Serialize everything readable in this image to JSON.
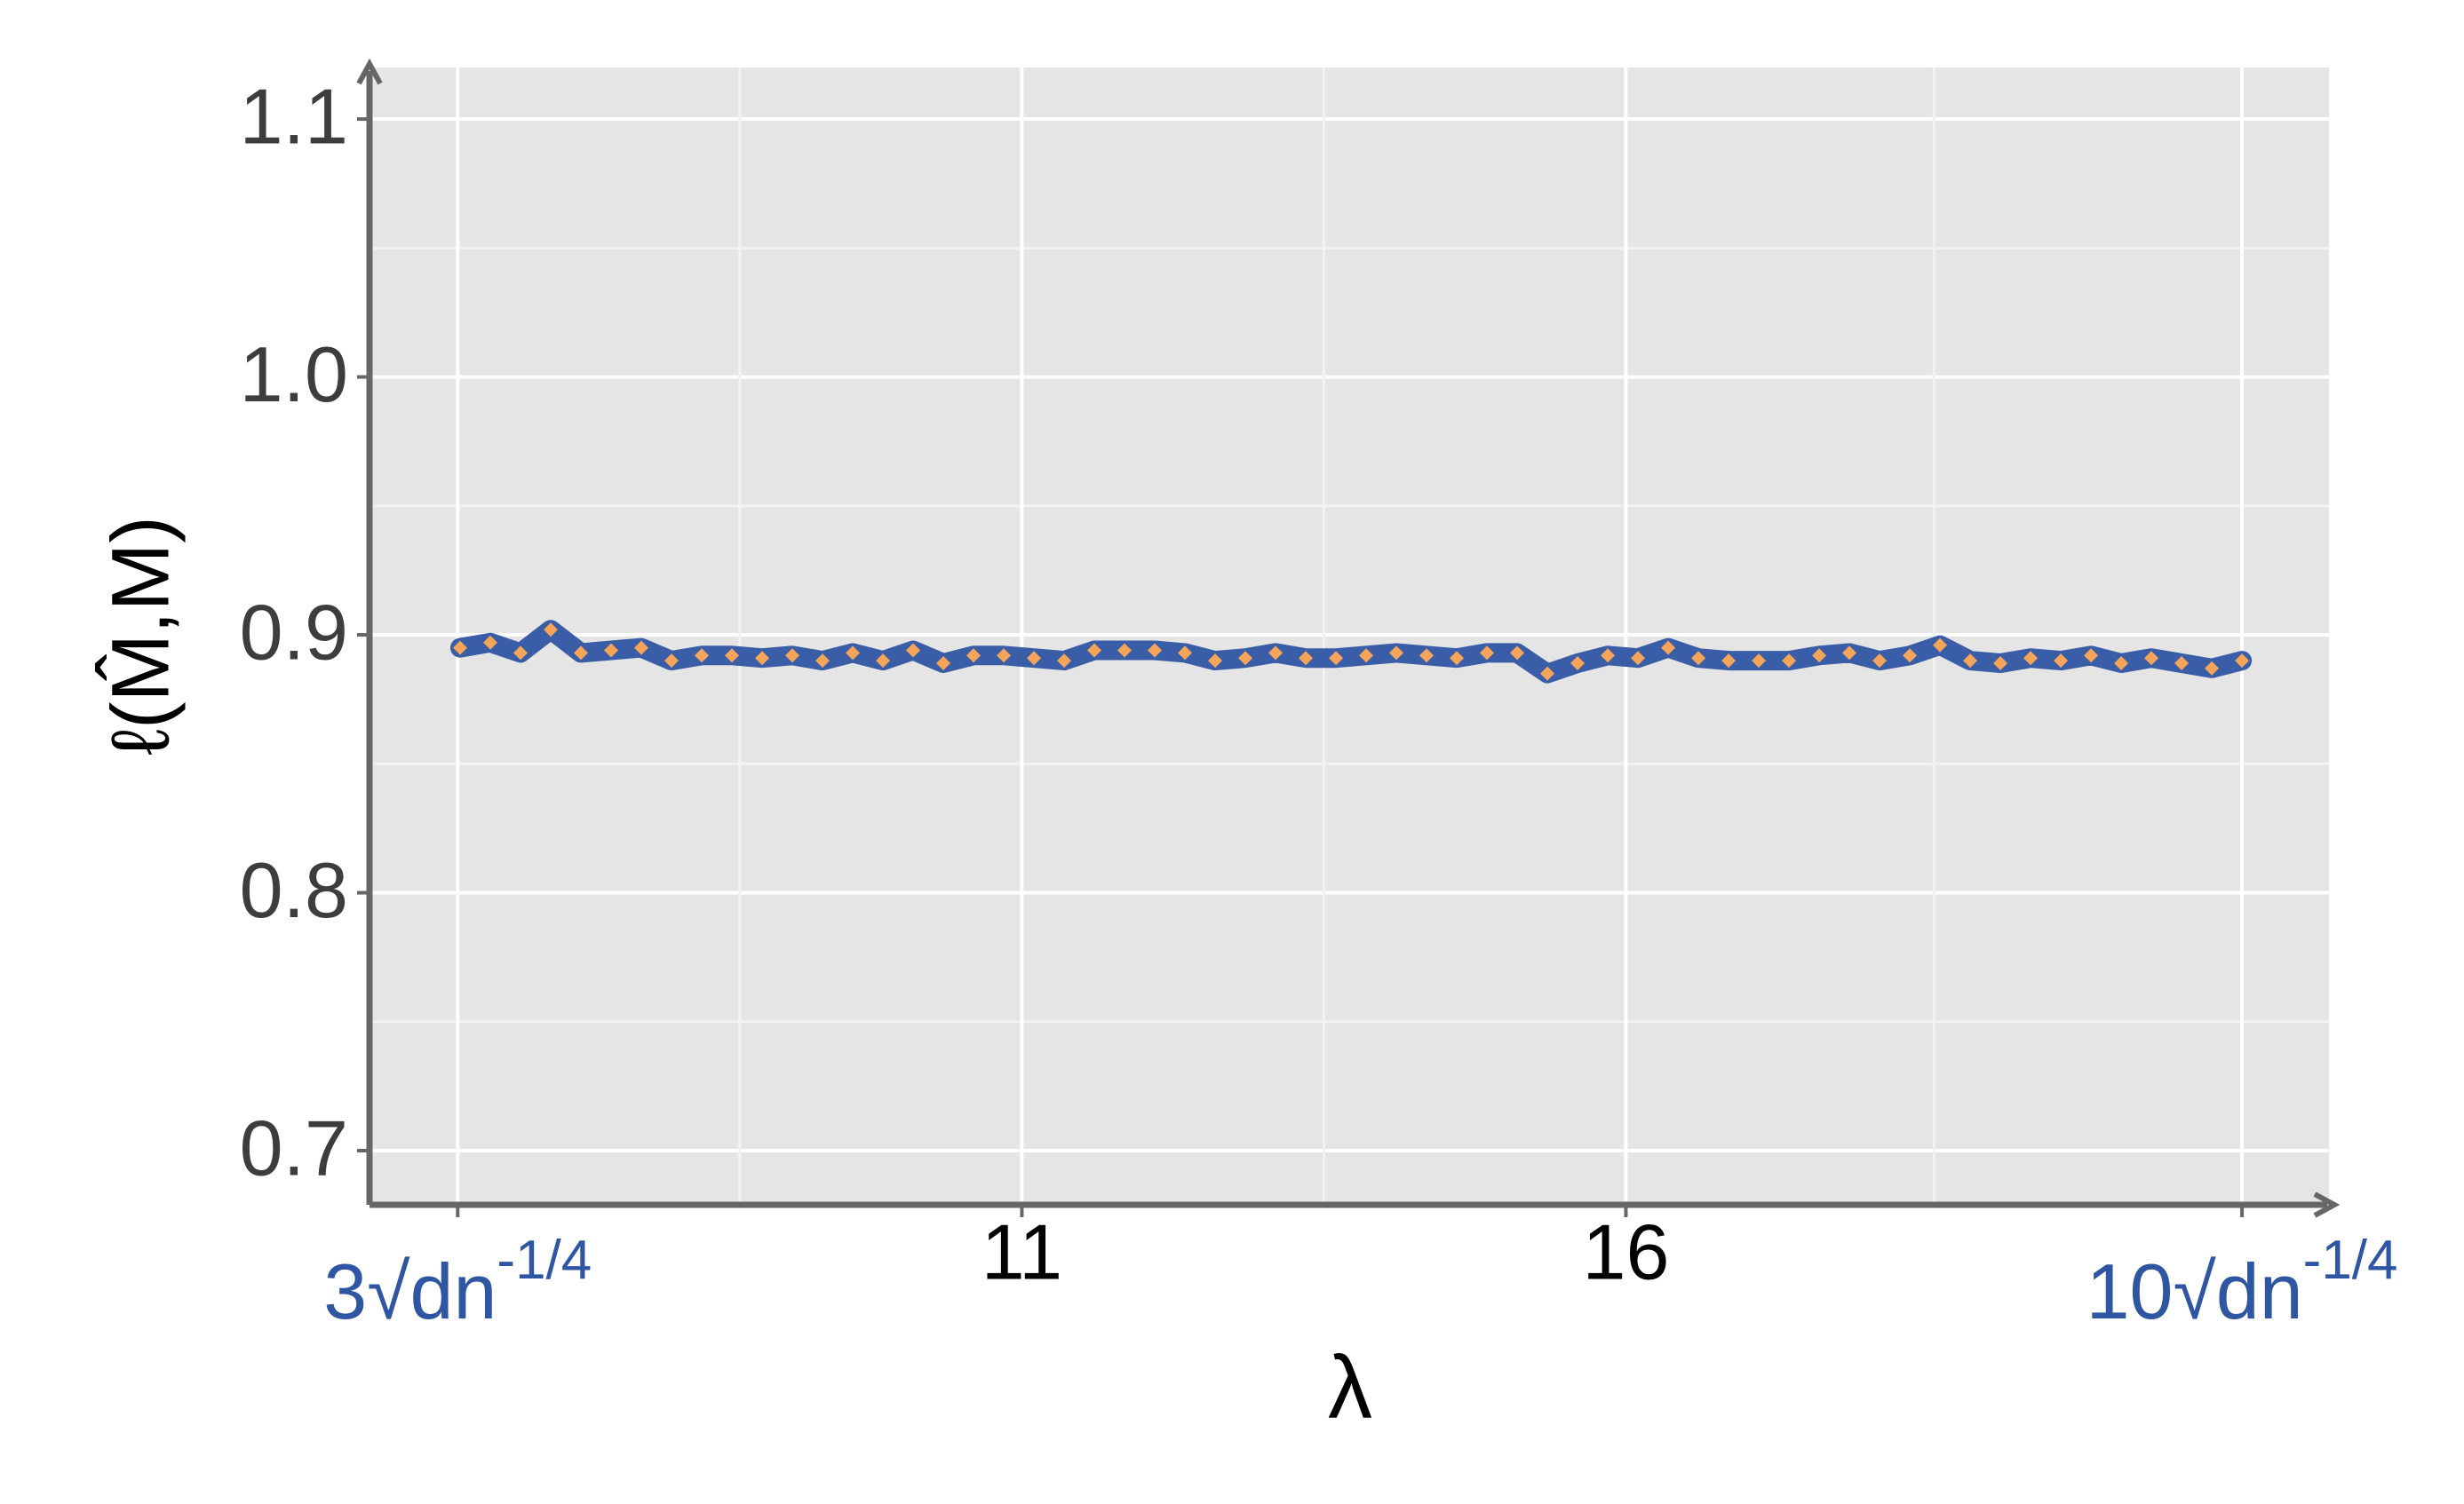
{
  "chart_data": {
    "type": "line",
    "x_label": "λ",
    "y_label": "ℓ(M̂,M)",
    "x": [
      6.35,
      6.6,
      6.85,
      7.1,
      7.35,
      7.6,
      7.85,
      8.1,
      8.35,
      8.6,
      8.85,
      9.1,
      9.35,
      9.6,
      9.85,
      10.1,
      10.35,
      10.6,
      10.85,
      11.1,
      11.35,
      11.6,
      11.85,
      12.1,
      12.35,
      12.6,
      12.85,
      13.1,
      13.35,
      13.6,
      13.85,
      14.1,
      14.35,
      14.6,
      14.85,
      15.1,
      15.35,
      15.6,
      15.85,
      16.1,
      16.35,
      16.6,
      16.85,
      17.1,
      17.35,
      17.6,
      17.85,
      18.1,
      18.35,
      18.6,
      18.85,
      19.1,
      19.35,
      19.6,
      19.85,
      20.1,
      20.35,
      20.6,
      20.85,
      21.1
    ],
    "series": [
      {
        "color": "#3a5da8",
        "marker_color": "#f5a55a",
        "values": [
          0.895,
          0.897,
          0.893,
          0.902,
          0.893,
          0.894,
          0.895,
          0.89,
          0.892,
          0.892,
          0.891,
          0.892,
          0.89,
          0.893,
          0.89,
          0.894,
          0.889,
          0.892,
          0.892,
          0.891,
          0.89,
          0.894,
          0.894,
          0.894,
          0.893,
          0.89,
          0.891,
          0.893,
          0.891,
          0.891,
          0.892,
          0.893,
          0.892,
          0.891,
          0.893,
          0.893,
          0.885,
          0.889,
          0.892,
          0.891,
          0.895,
          0.891,
          0.89,
          0.89,
          0.89,
          0.892,
          0.893,
          0.89,
          0.892,
          0.896,
          0.89,
          0.889,
          0.891,
          0.89,
          0.892,
          0.889,
          0.891,
          0.889,
          0.887,
          0.89
        ]
      }
    ],
    "xlim": [
      5.6,
      21.82
    ],
    "xticks": [
      {
        "value": 6.33,
        "label": "3√dn",
        "label_superscript": "-1/4"
      },
      11,
      16,
      {
        "value": 21.1,
        "label": "10√dn",
        "label_superscript": "-1/4"
      }
    ],
    "ylim": [
      0.679,
      1.12
    ],
    "yticks": [
      0.7,
      0.8,
      0.9,
      {
        "value": 1.0,
        "label": "1.0"
      },
      1.1
    ],
    "grid": true
  }
}
